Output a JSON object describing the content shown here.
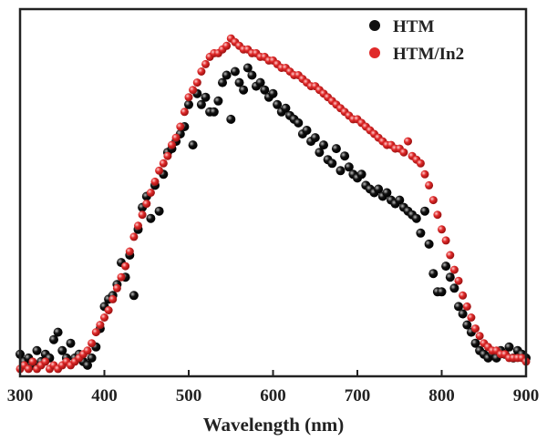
{
  "chart_data": {
    "type": "scatter",
    "xlabel": "Wavelength (nm)",
    "ylabel": "",
    "xlim": [
      300,
      900
    ],
    "ylim": [
      0,
      1
    ],
    "xticks": [
      "300",
      "400",
      "500",
      "600",
      "700",
      "800",
      "900"
    ],
    "yticks_shown": false,
    "grid": false,
    "legend_position": "top-right",
    "series": [
      {
        "name": "HTM",
        "color": "#111111",
        "x": [
          300,
          305,
          310,
          315,
          320,
          325,
          330,
          335,
          340,
          345,
          350,
          355,
          360,
          365,
          370,
          375,
          380,
          385,
          390,
          395,
          400,
          405,
          410,
          415,
          420,
          425,
          430,
          435,
          440,
          445,
          450,
          455,
          460,
          465,
          470,
          475,
          480,
          485,
          490,
          495,
          500,
          505,
          510,
          515,
          520,
          525,
          530,
          535,
          540,
          545,
          550,
          555,
          560,
          565,
          570,
          575,
          580,
          585,
          590,
          595,
          600,
          605,
          610,
          615,
          620,
          625,
          630,
          635,
          640,
          645,
          650,
          655,
          660,
          665,
          670,
          675,
          680,
          685,
          690,
          695,
          700,
          705,
          710,
          715,
          720,
          725,
          730,
          735,
          740,
          745,
          750,
          755,
          760,
          765,
          770,
          775,
          780,
          785,
          790,
          795,
          800,
          805,
          810,
          815,
          820,
          825,
          830,
          835,
          840,
          845,
          850,
          855,
          860,
          865,
          870,
          875,
          880,
          885,
          890,
          895,
          900
        ],
        "y": [
          0.06,
          0.04,
          0.05,
          0.03,
          0.07,
          0.04,
          0.06,
          0.05,
          0.1,
          0.12,
          0.07,
          0.05,
          0.09,
          0.05,
          0.06,
          0.04,
          0.03,
          0.05,
          0.08,
          0.13,
          0.19,
          0.21,
          0.22,
          0.25,
          0.31,
          0.27,
          0.33,
          0.22,
          0.4,
          0.46,
          0.49,
          0.43,
          0.52,
          0.45,
          0.55,
          0.61,
          0.62,
          0.64,
          0.66,
          0.68,
          0.74,
          0.63,
          0.77,
          0.74,
          0.76,
          0.72,
          0.72,
          0.75,
          0.8,
          0.82,
          0.7,
          0.83,
          0.8,
          0.78,
          0.84,
          0.82,
          0.79,
          0.8,
          0.78,
          0.76,
          0.77,
          0.74,
          0.72,
          0.73,
          0.71,
          0.7,
          0.69,
          0.66,
          0.67,
          0.64,
          0.65,
          0.61,
          0.63,
          0.59,
          0.58,
          0.62,
          0.56,
          0.6,
          0.57,
          0.55,
          0.54,
          0.55,
          0.52,
          0.51,
          0.5,
          0.51,
          0.49,
          0.5,
          0.48,
          0.47,
          0.48,
          0.46,
          0.45,
          0.44,
          0.43,
          0.39,
          0.45,
          0.36,
          0.28,
          0.23,
          0.23,
          0.3,
          0.27,
          0.24,
          0.19,
          0.17,
          0.14,
          0.12,
          0.09,
          0.07,
          0.06,
          0.05,
          0.06,
          0.05,
          0.07,
          0.06,
          0.08,
          0.05,
          0.07,
          0.06,
          0.05
        ]
      },
      {
        "name": "HTM/In2",
        "color": "#e02a2a",
        "x": [
          300,
          305,
          310,
          315,
          320,
          325,
          330,
          335,
          340,
          345,
          350,
          355,
          360,
          365,
          370,
          375,
          380,
          385,
          390,
          395,
          400,
          405,
          410,
          415,
          420,
          425,
          430,
          435,
          440,
          445,
          450,
          455,
          460,
          465,
          470,
          475,
          480,
          485,
          490,
          495,
          500,
          505,
          510,
          515,
          520,
          525,
          530,
          535,
          540,
          545,
          550,
          555,
          560,
          565,
          570,
          575,
          580,
          585,
          590,
          595,
          600,
          605,
          610,
          615,
          620,
          625,
          630,
          635,
          640,
          645,
          650,
          655,
          660,
          665,
          670,
          675,
          680,
          685,
          690,
          695,
          700,
          705,
          710,
          715,
          720,
          725,
          730,
          735,
          740,
          745,
          750,
          755,
          760,
          765,
          770,
          775,
          780,
          785,
          790,
          795,
          800,
          805,
          810,
          815,
          820,
          825,
          830,
          835,
          840,
          845,
          850,
          855,
          860,
          865,
          870,
          875,
          880,
          885,
          890,
          895,
          900
        ],
        "y": [
          0.02,
          0.03,
          0.02,
          0.04,
          0.02,
          0.03,
          0.04,
          0.02,
          0.03,
          0.02,
          0.03,
          0.04,
          0.03,
          0.04,
          0.05,
          0.06,
          0.07,
          0.09,
          0.12,
          0.14,
          0.16,
          0.18,
          0.21,
          0.24,
          0.27,
          0.3,
          0.34,
          0.38,
          0.41,
          0.44,
          0.47,
          0.5,
          0.53,
          0.56,
          0.58,
          0.6,
          0.63,
          0.65,
          0.68,
          0.72,
          0.76,
          0.78,
          0.8,
          0.83,
          0.85,
          0.87,
          0.88,
          0.88,
          0.89,
          0.9,
          0.92,
          0.91,
          0.9,
          0.89,
          0.89,
          0.88,
          0.88,
          0.87,
          0.87,
          0.86,
          0.86,
          0.85,
          0.84,
          0.84,
          0.83,
          0.82,
          0.82,
          0.81,
          0.8,
          0.79,
          0.79,
          0.78,
          0.77,
          0.76,
          0.75,
          0.74,
          0.73,
          0.72,
          0.71,
          0.7,
          0.7,
          0.69,
          0.68,
          0.67,
          0.66,
          0.65,
          0.64,
          0.63,
          0.63,
          0.62,
          0.62,
          0.61,
          0.64,
          0.6,
          0.59,
          0.58,
          0.55,
          0.52,
          0.48,
          0.44,
          0.4,
          0.37,
          0.33,
          0.29,
          0.26,
          0.22,
          0.19,
          0.16,
          0.13,
          0.11,
          0.09,
          0.08,
          0.07,
          0.07,
          0.06,
          0.06,
          0.05,
          0.05,
          0.05,
          0.05,
          0.04
        ]
      }
    ]
  }
}
